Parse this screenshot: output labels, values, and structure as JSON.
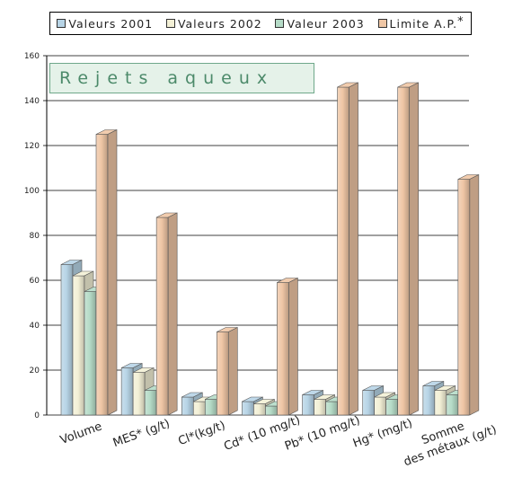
{
  "chart_data": {
    "type": "bar",
    "title": "Rejets aqueux",
    "categories": [
      "Volume",
      "MES* (g/t)",
      "Cl*(kg/t)",
      "Cd* (10 mg/t)",
      "Pb* (10 mg/t)",
      "Hg* (mg/t)",
      "Somme des métaux (g/t)"
    ],
    "series": [
      {
        "name": "Valeurs 2001",
        "color": "#b7d4e6",
        "values": [
          67,
          21,
          8,
          6,
          9,
          11,
          13
        ]
      },
      {
        "name": "Valeurs 2002",
        "color": "#f3f0d6",
        "values": [
          62,
          19,
          6,
          5,
          7,
          8,
          11
        ]
      },
      {
        "name": "Valeur 2003",
        "color": "#b5dbc7",
        "values": [
          55,
          11,
          7,
          4,
          6,
          7,
          9
        ]
      },
      {
        "name": "Limite A.P.",
        "color": "#efc6a5",
        "values": [
          125,
          88,
          37,
          59,
          146,
          146,
          105
        ]
      }
    ],
    "ylim": [
      0,
      160
    ],
    "yticks": [
      0,
      20,
      40,
      60,
      80,
      100,
      120,
      140,
      160
    ],
    "grid": true,
    "legend_position": "top",
    "legend_suffix": "*",
    "xlabel": "",
    "ylabel": ""
  }
}
